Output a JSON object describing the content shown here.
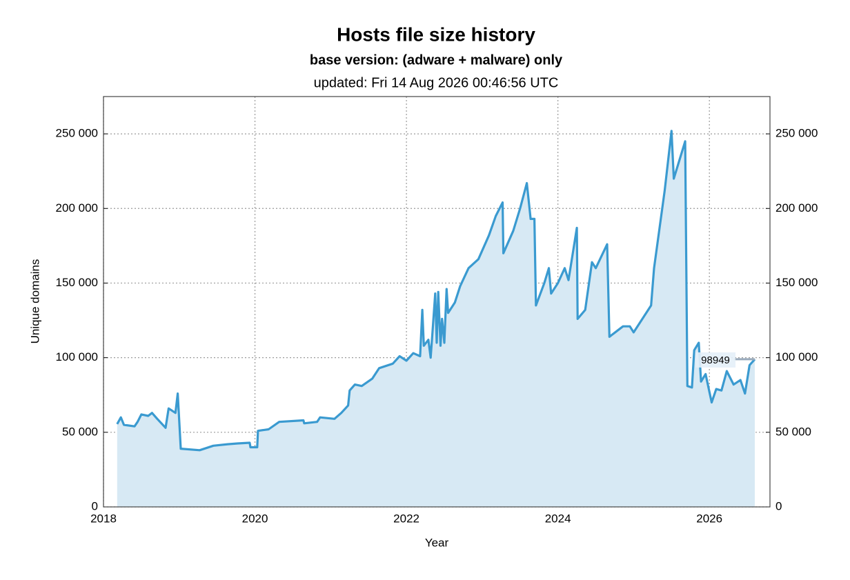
{
  "chart_data": {
    "type": "line",
    "title": "Hosts file size history",
    "subtitle": "base version: (adware + malware) only",
    "updated": "updated: Fri 14 Aug 2026 00:46:56 UTC",
    "xlabel": "Year",
    "ylabel": "Unique domains",
    "xlim": [
      2018,
      2026.8
    ],
    "xticks": [
      2018,
      2020,
      2022,
      2024,
      2026
    ],
    "ylim": [
      0,
      275000
    ],
    "yticks": [
      0,
      {
        "value": 50000,
        "label": "50 000"
      },
      {
        "value": 100000,
        "label": "100 000"
      },
      {
        "value": 150000,
        "label": "150 000"
      },
      {
        "value": 200000,
        "label": "200 000"
      },
      {
        "value": 250000,
        "label": "250 000"
      }
    ],
    "grid": true,
    "color": "#3a9ad0",
    "fill": "#d7e9f4",
    "x": [
      2018.18,
      2018.23,
      2018.27,
      2018.41,
      2018.45,
      2018.5,
      2018.59,
      2018.64,
      2018.71,
      2018.82,
      2018.86,
      2018.95,
      2018.98,
      2019.02,
      2019.27,
      2019.45,
      2019.64,
      2019.77,
      2019.93,
      2019.94,
      2020.03,
      2020.04,
      2020.18,
      2020.32,
      2020.64,
      2020.65,
      2020.82,
      2020.86,
      2021.05,
      2021.14,
      2021.23,
      2021.25,
      2021.32,
      2021.41,
      2021.55,
      2021.64,
      2021.82,
      2021.91,
      2022.0,
      2022.09,
      2022.18,
      2022.21,
      2022.23,
      2022.29,
      2022.32,
      2022.34,
      2022.38,
      2022.4,
      2022.42,
      2022.45,
      2022.47,
      2022.5,
      2022.53,
      2022.55,
      2022.64,
      2022.71,
      2022.82,
      2022.95,
      2023.09,
      2023.18,
      2023.27,
      2023.28,
      2023.41,
      2023.5,
      2023.59,
      2023.64,
      2023.69,
      2023.71,
      2023.82,
      2023.88,
      2023.91,
      2024.0,
      2024.09,
      2024.14,
      2024.25,
      2024.26,
      2024.36,
      2024.45,
      2024.5,
      2024.65,
      2024.68,
      2024.86,
      2024.95,
      2025.0,
      2025.23,
      2025.27,
      2025.41,
      2025.5,
      2025.53,
      2025.59,
      2025.68,
      2025.71,
      2025.77,
      2025.8,
      2025.86,
      2025.89,
      2025.95,
      2026.03,
      2026.09,
      2026.16,
      2026.23,
      2026.32,
      2026.41,
      2026.47,
      2026.53,
      2026.6
    ],
    "values": [
      55500,
      60000,
      55000,
      54000,
      57000,
      62000,
      61000,
      63000,
      59000,
      53000,
      66000,
      63000,
      76000,
      39000,
      38000,
      41000,
      42000,
      42500,
      43000,
      40000,
      40000,
      51000,
      52000,
      57000,
      58000,
      56000,
      57000,
      60000,
      59000,
      63000,
      68000,
      78000,
      82000,
      81000,
      86000,
      93000,
      96000,
      101000,
      98000,
      103000,
      101000,
      132000,
      108000,
      112000,
      100000,
      114000,
      143000,
      110000,
      144000,
      108000,
      126000,
      110000,
      146000,
      130000,
      137000,
      148000,
      160000,
      166000,
      182000,
      195000,
      204000,
      170000,
      185000,
      200000,
      217000,
      193000,
      193000,
      135000,
      150000,
      160000,
      143000,
      150000,
      160000,
      152000,
      187000,
      126000,
      132000,
      164000,
      160000,
      176000,
      114000,
      121000,
      121000,
      117000,
      135000,
      160000,
      212000,
      252000,
      220000,
      230000,
      245000,
      81000,
      80000,
      105000,
      110000,
      84000,
      89000,
      70000,
      79000,
      78000,
      91000,
      82000,
      85000,
      76000,
      95000,
      98949
    ],
    "annotation": {
      "text": "98949",
      "value": 98949
    }
  }
}
